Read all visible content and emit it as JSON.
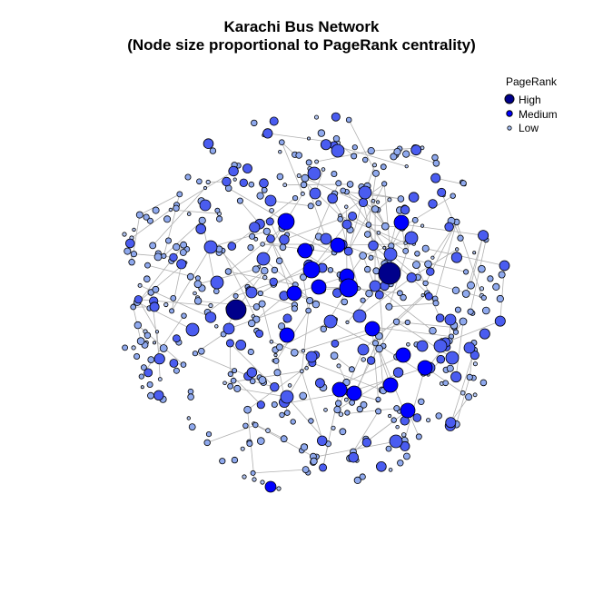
{
  "title": {
    "line1": "Karachi Bus Network",
    "line2": "(Node size proportional to PageRank centrality)"
  },
  "legend": {
    "title": "PageRank",
    "items": [
      {
        "label": "High",
        "color": "#00008b"
      },
      {
        "label": "Medium",
        "color": "#0000ff"
      },
      {
        "label": "Low",
        "color": "#a4bdf0"
      }
    ]
  },
  "colors": {
    "edge": "#b0b0b0",
    "node_outline": "#000000",
    "high": "#00008b",
    "medium_high": "#0000ff",
    "medium": "#4a5cf0",
    "low": "#8fa9ee",
    "lowest": "#b3c6f3"
  }
}
